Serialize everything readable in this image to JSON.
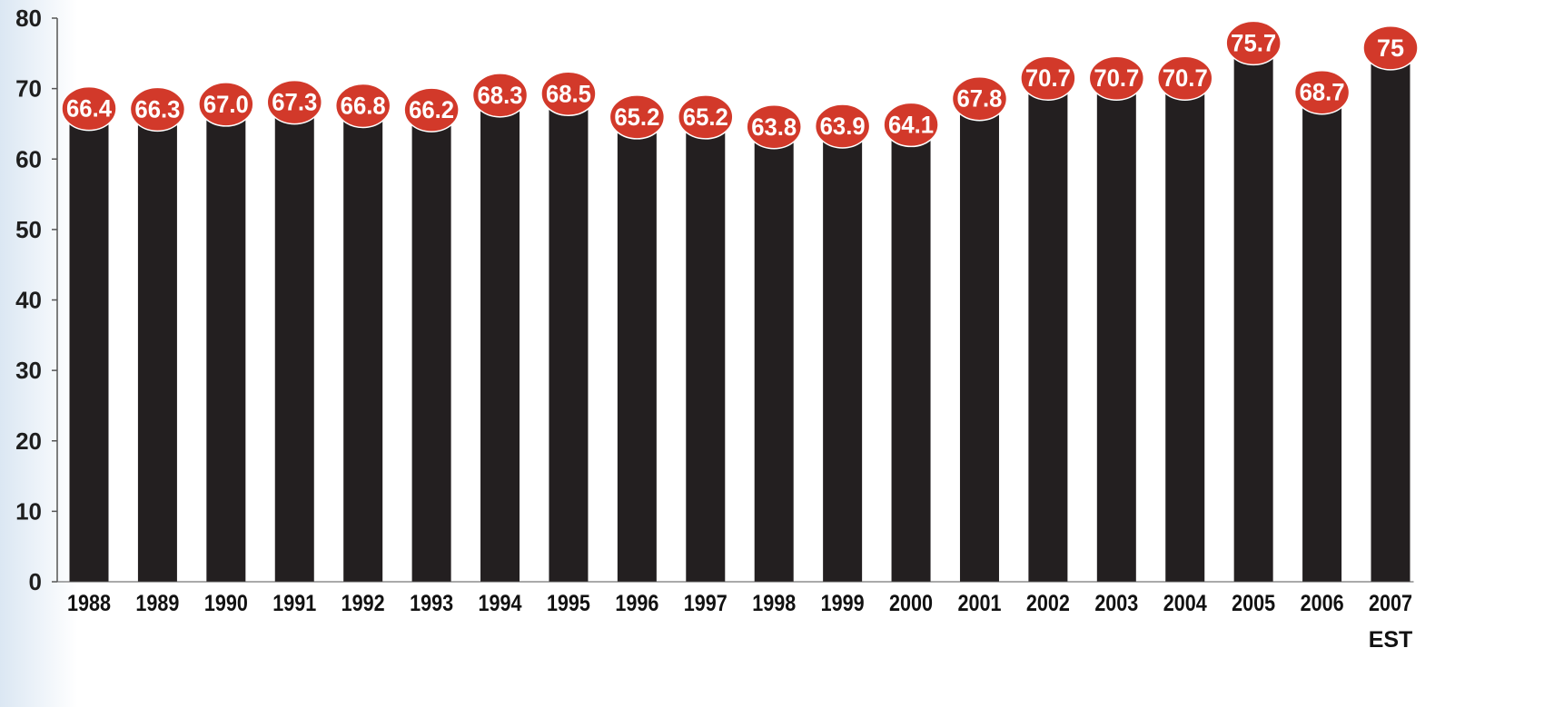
{
  "chart_data": {
    "type": "bar",
    "categories": [
      "1988",
      "1989",
      "1990",
      "1991",
      "1992",
      "1993",
      "1994",
      "1995",
      "1996",
      "1997",
      "1998",
      "1999",
      "2000",
      "2001",
      "2002",
      "2003",
      "2004",
      "2005",
      "2006",
      "2007"
    ],
    "category_sublabels": {
      "2007": "EST"
    },
    "values": [
      66.4,
      66.3,
      67.0,
      67.3,
      66.8,
      66.2,
      68.3,
      68.5,
      65.2,
      65.2,
      63.8,
      63.9,
      64.1,
      67.8,
      70.7,
      70.7,
      70.7,
      75.7,
      68.7,
      75
    ],
    "data_labels": [
      "66.4",
      "66.3",
      "67.0",
      "67.3",
      "66.8",
      "66.2",
      "68.3",
      "68.5",
      "65.2",
      "65.2",
      "63.8",
      "63.9",
      "64.1",
      "67.8",
      "70.7",
      "70.7",
      "70.7",
      "75.7",
      "68.7",
      "75"
    ],
    "yticks": [
      0,
      10,
      20,
      30,
      40,
      50,
      60,
      70,
      80
    ],
    "ylim": [
      0,
      80
    ],
    "title": "",
    "xlabel": "",
    "ylabel": "",
    "grid": false,
    "legend": "none",
    "colors": {
      "bar": "#231f20",
      "label_bubble": "#d2392a",
      "label_text": "#ffffff",
      "axis": "#555555",
      "background": "#ffffff"
    }
  }
}
